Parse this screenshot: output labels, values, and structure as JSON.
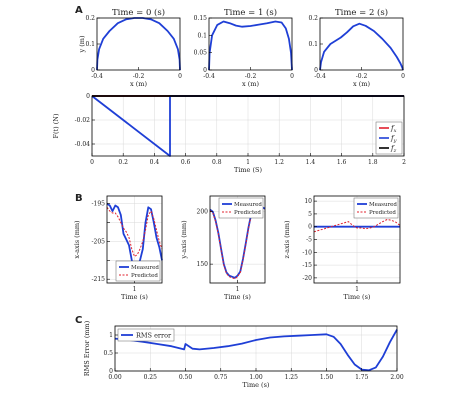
{
  "figure": {
    "panel_labels": [
      "A",
      "B",
      "C"
    ]
  },
  "colors": {
    "blue": "#1f3fd6",
    "red": "#e0202e",
    "black": "#000000",
    "grid": "#d9d9d9"
  },
  "chart_data": [
    {
      "id": "A1",
      "type": "line",
      "title": "Time = 0 (s)",
      "xlabel": "x (m)",
      "ylabel": "y (m)",
      "xlim": [
        -0.4,
        0
      ],
      "ylim": [
        0,
        0.2
      ],
      "xticks": [
        -0.4,
        -0.2,
        0
      ],
      "xtick_labels": [
        "-0.4",
        "-0.2",
        "0"
      ],
      "yticks": [
        0,
        0.1,
        0.2
      ],
      "ytick_labels": [
        "0",
        "0.1",
        "0.2"
      ],
      "series": [
        {
          "color": "#1f3fd6",
          "x": [
            -0.4,
            -0.398,
            -0.39,
            -0.37,
            -0.34,
            -0.3,
            -0.26,
            -0.22,
            -0.2,
            -0.18,
            -0.14,
            -0.1,
            -0.06,
            -0.03,
            -0.01,
            -0.002,
            0
          ],
          "y": [
            0,
            0.04,
            0.08,
            0.12,
            0.15,
            0.18,
            0.195,
            0.2,
            0.2,
            0.2,
            0.195,
            0.18,
            0.15,
            0.12,
            0.08,
            0.04,
            0
          ]
        }
      ]
    },
    {
      "id": "A2",
      "type": "line",
      "title": "Time = 1 (s)",
      "xlabel": "x (m)",
      "ylabel": "",
      "xlim": [
        -0.4,
        0
      ],
      "ylim": [
        0,
        0.15
      ],
      "xticks": [
        -0.4,
        -0.2,
        0
      ],
      "xtick_labels": [
        "-0.4",
        "-0.2",
        "0"
      ],
      "yticks": [
        0,
        0.05,
        0.1,
        0.15
      ],
      "ytick_labels": [
        "0",
        "0.05",
        "0.1",
        "0.15"
      ],
      "series": [
        {
          "color": "#1f3fd6",
          "x": [
            -0.4,
            -0.397,
            -0.385,
            -0.36,
            -0.33,
            -0.3,
            -0.27,
            -0.24,
            -0.2,
            -0.16,
            -0.12,
            -0.08,
            -0.05,
            -0.03,
            -0.015,
            -0.005,
            0
          ],
          "y": [
            0,
            0.05,
            0.1,
            0.13,
            0.14,
            0.135,
            0.128,
            0.125,
            0.127,
            0.131,
            0.135,
            0.14,
            0.137,
            0.12,
            0.09,
            0.05,
            0
          ]
        }
      ]
    },
    {
      "id": "A3",
      "type": "line",
      "title": "Time = 2 (s)",
      "xlabel": "x (m)",
      "ylabel": "",
      "xlim": [
        -0.4,
        0
      ],
      "ylim": [
        0,
        0.2
      ],
      "xticks": [
        -0.4,
        -0.2,
        0
      ],
      "xtick_labels": [
        "-0.4",
        "-0.2",
        "0"
      ],
      "yticks": [
        0,
        0.1,
        0.2
      ],
      "ytick_labels": [
        "0",
        "0.1",
        "0.2"
      ],
      "series": [
        {
          "color": "#1f3fd6",
          "x": [
            -0.4,
            -0.395,
            -0.38,
            -0.35,
            -0.32,
            -0.3,
            -0.27,
            -0.24,
            -0.21,
            -0.18,
            -0.14,
            -0.1,
            -0.06,
            -0.03,
            -0.012,
            -0.003,
            0
          ],
          "y": [
            0,
            0.03,
            0.07,
            0.1,
            0.115,
            0.125,
            0.145,
            0.168,
            0.178,
            0.17,
            0.15,
            0.12,
            0.085,
            0.05,
            0.025,
            0.008,
            0
          ]
        }
      ]
    },
    {
      "id": "A4",
      "type": "line",
      "title": "",
      "xlabel": "Time (S)",
      "ylabel": "F(t) (N)",
      "xlim": [
        0,
        2
      ],
      "ylim": [
        -0.05,
        0
      ],
      "xticks": [
        0,
        0.2,
        0.4,
        0.6,
        0.8,
        1,
        1.2,
        1.4,
        1.6,
        1.8,
        2
      ],
      "xtick_labels": [
        "0",
        "0.2",
        "0.4",
        "0.6",
        "0.8",
        "1",
        "1.2",
        "1.4",
        "1.6",
        "1.8",
        "2"
      ],
      "yticks": [
        0,
        -0.02,
        -0.04
      ],
      "ytick_labels": [
        "0",
        "-0.02",
        "-0.04"
      ],
      "grid": true,
      "legend_position": "right",
      "series": [
        {
          "name": "f_x",
          "color": "#e0202e",
          "x": [
            0,
            2
          ],
          "y": [
            0,
            0
          ]
        },
        {
          "name": "f_y",
          "color": "#1f3fd6",
          "x": [
            0,
            0.5,
            0.5,
            2
          ],
          "y": [
            0,
            -0.05,
            0,
            0
          ]
        },
        {
          "name": "f_z",
          "color": "#000000",
          "x": [
            0,
            2
          ],
          "y": [
            0,
            0
          ]
        }
      ],
      "legend_labels": [
        {
          "base": "f",
          "sub": "x"
        },
        {
          "base": "f",
          "sub": "y"
        },
        {
          "base": "f",
          "sub": "z"
        }
      ]
    },
    {
      "id": "B1",
      "type": "line",
      "title": "",
      "xlabel": "Time (s)",
      "ylabel": "x-axis (mm)",
      "xlim": [
        0,
        2
      ],
      "ylim": [
        -216,
        -193
      ],
      "xticks": [
        1
      ],
      "xtick_labels": [
        "1"
      ],
      "yticks": [
        -195,
        -200,
        -205,
        -210,
        -215
      ],
      "ytick_labels": [
        "-195",
        "",
        "-205",
        "",
        "-215"
      ],
      "grid": true,
      "legend_position": "bottom-right",
      "series": [
        {
          "name": "Measured",
          "color": "#1f3fd6",
          "x": [
            0,
            0.1,
            0.2,
            0.3,
            0.4,
            0.5,
            0.6,
            0.7,
            0.8,
            0.9,
            1,
            1.1,
            1.2,
            1.3,
            1.4,
            1.5,
            1.6,
            1.7,
            1.8,
            1.9,
            2
          ],
          "y": [
            -195,
            -195.5,
            -197,
            -195.5,
            -196,
            -198,
            -203,
            -204.5,
            -206,
            -210,
            -214.5,
            -212,
            -210,
            -207,
            -200,
            -196,
            -196.5,
            -200,
            -204,
            -206.5,
            -210
          ]
        },
        {
          "name": "Predicted",
          "color": "#e0202e",
          "dashed": true,
          "x": [
            0,
            0.1,
            0.2,
            0.3,
            0.4,
            0.5,
            0.6,
            0.7,
            0.8,
            0.9,
            1,
            1.1,
            1.2,
            1.3,
            1.4,
            1.5,
            1.6,
            1.7,
            1.8,
            1.9,
            2
          ],
          "y": [
            -196,
            -197,
            -197.5,
            -197.5,
            -198.5,
            -200,
            -201.5,
            -202.5,
            -204,
            -207,
            -209,
            -208.5,
            -207,
            -205,
            -202,
            -198,
            -197,
            -199,
            -202,
            -205,
            -207
          ]
        }
      ]
    },
    {
      "id": "B2",
      "type": "line",
      "title": "",
      "xlabel": "Time (s)",
      "ylabel": "y-axis (mm)",
      "xlim": [
        0,
        2
      ],
      "ylim": [
        132,
        215
      ],
      "xticks": [
        1
      ],
      "xtick_labels": [
        "1"
      ],
      "yticks": [
        150,
        200
      ],
      "ytick_labels": [
        "150",
        "200"
      ],
      "grid": true,
      "legend_position": "top-right",
      "series": [
        {
          "name": "Measured",
          "color": "#1f3fd6",
          "x": [
            0,
            0.1,
            0.2,
            0.3,
            0.4,
            0.5,
            0.6,
            0.7,
            0.8,
            0.9,
            1,
            1.1,
            1.2,
            1.3,
            1.4,
            1.5,
            1.6,
            1.7,
            1.8,
            1.9,
            2
          ],
          "y": [
            202,
            200,
            192,
            180,
            165,
            150,
            142,
            139,
            138,
            137,
            139,
            143,
            155,
            170,
            185,
            198,
            205,
            208,
            206,
            204,
            203
          ]
        },
        {
          "name": "Predicted",
          "color": "#e0202e",
          "dashed": true,
          "x": [
            0,
            0.1,
            0.2,
            0.3,
            0.4,
            0.5,
            0.6,
            0.7,
            0.8,
            0.9,
            1,
            1.1,
            1.2,
            1.3,
            1.4,
            1.5,
            1.6,
            1.7,
            1.8,
            1.9,
            2
          ],
          "y": [
            201,
            199,
            191,
            179,
            164,
            149,
            141,
            138,
            137,
            136,
            138,
            142,
            154,
            169,
            184,
            197,
            204,
            207,
            205,
            203,
            202
          ]
        }
      ]
    },
    {
      "id": "B3",
      "type": "line",
      "title": "",
      "xlabel": "Time (s)",
      "ylabel": "z-axis (mm)",
      "xlim": [
        0,
        2
      ],
      "ylim": [
        -22,
        12
      ],
      "xticks": [
        1
      ],
      "xtick_labels": [
        "1"
      ],
      "yticks": [
        10,
        5,
        0,
        -5,
        -10,
        -15,
        -20
      ],
      "ytick_labels": [
        "10",
        "5",
        "0",
        "-5",
        "-10",
        "-15",
        "-20"
      ],
      "grid": true,
      "legend_position": "top-right",
      "series": [
        {
          "name": "Measured",
          "color": "#1f3fd6",
          "x": [
            0,
            2
          ],
          "y": [
            0,
            0
          ]
        },
        {
          "name": "Predicted",
          "color": "#e0202e",
          "dashed": true,
          "x": [
            0,
            0.1,
            0.2,
            0.3,
            0.4,
            0.5,
            0.6,
            0.7,
            0.8,
            0.9,
            1,
            1.1,
            1.2,
            1.3,
            1.4,
            1.5,
            1.6,
            1.7,
            1.8,
            1.9,
            2
          ],
          "y": [
            -2,
            -1.5,
            -1,
            -0.5,
            0,
            0.5,
            1,
            1.5,
            2,
            0.5,
            -0.5,
            -0.5,
            -0.8,
            -0.5,
            0,
            1,
            2,
            2.8,
            2.5,
            1.8,
            0.5
          ]
        }
      ]
    },
    {
      "id": "C",
      "type": "line",
      "title": "",
      "xlabel": "Time (s)",
      "ylabel": "RMS Error (mm)",
      "xlim": [
        0,
        2
      ],
      "ylim": [
        0,
        1.25
      ],
      "xticks": [
        0,
        0.25,
        0.5,
        0.75,
        1,
        1.25,
        1.5,
        1.75,
        2
      ],
      "xtick_labels": [
        "0.00",
        "0.25",
        "0.50",
        "0.75",
        "1.00",
        "1.25",
        "1.50",
        "1.75",
        "2.00"
      ],
      "yticks": [
        0,
        0.5,
        1
      ],
      "ytick_labels": [
        "0",
        "0.5",
        "1"
      ],
      "grid": true,
      "legend_position": "top-left",
      "series": [
        {
          "name": "RMS error",
          "color": "#1f3fd6",
          "x": [
            0,
            0.1,
            0.2,
            0.3,
            0.4,
            0.49,
            0.5,
            0.55,
            0.6,
            0.7,
            0.8,
            0.9,
            1,
            1.1,
            1.2,
            1.3,
            1.4,
            1.5,
            1.55,
            1.6,
            1.65,
            1.7,
            1.75,
            1.8,
            1.85,
            1.9,
            1.95,
            2
          ],
          "y": [
            0.9,
            0.86,
            0.81,
            0.75,
            0.69,
            0.6,
            0.75,
            0.62,
            0.6,
            0.64,
            0.69,
            0.76,
            0.86,
            0.93,
            0.96,
            0.98,
            1.0,
            1.02,
            0.95,
            0.75,
            0.45,
            0.18,
            0.04,
            0.02,
            0.1,
            0.4,
            0.8,
            1.15
          ]
        }
      ]
    }
  ]
}
